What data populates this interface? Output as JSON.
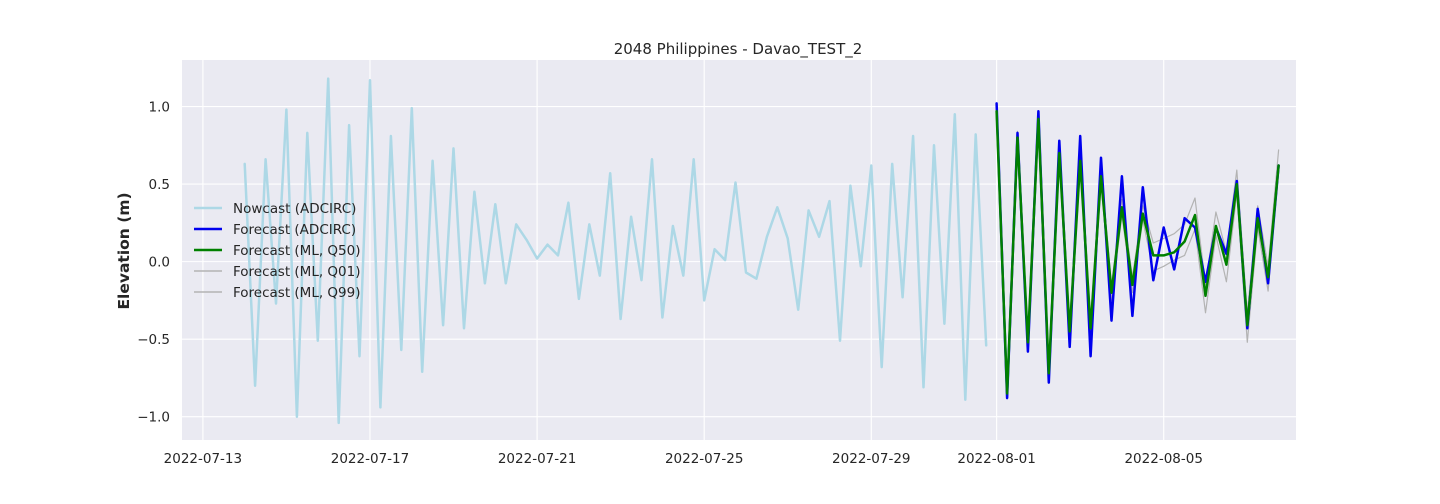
{
  "chart_data": {
    "type": "line",
    "title": "2048 Philippines - Davao_TEST_2",
    "xlabel": "",
    "ylabel": "Elevation (m)",
    "xlim": [
      "2022-07-12T12:00",
      "2022-08-08T04:00"
    ],
    "ylim": [
      -1.15,
      1.3
    ],
    "grid": true,
    "legend_position": "center-left",
    "x_ticks": [
      "2022-07-13",
      "2022-07-17",
      "2022-07-21",
      "2022-07-25",
      "2022-07-29",
      "2022-08-01",
      "2022-08-05"
    ],
    "y_ticks": [
      -1.0,
      -0.5,
      0.0,
      0.5,
      1.0
    ],
    "y_tick_labels": [
      "−1.0",
      "−0.5",
      "0.0",
      "0.5",
      "1.0"
    ],
    "series": [
      {
        "name": "Nowcast (ADCIRC)",
        "color": "#add8e6",
        "x": [
          "2022-07-14T00:00",
          "2022-07-14T06:00",
          "2022-07-14T12:00",
          "2022-07-14T18:00",
          "2022-07-15T00:00",
          "2022-07-15T06:00",
          "2022-07-15T12:00",
          "2022-07-15T18:00",
          "2022-07-16T00:00",
          "2022-07-16T06:00",
          "2022-07-16T12:00",
          "2022-07-16T18:00",
          "2022-07-17T00:00",
          "2022-07-17T06:00",
          "2022-07-17T12:00",
          "2022-07-17T18:00",
          "2022-07-18T00:00",
          "2022-07-18T06:00",
          "2022-07-18T12:00",
          "2022-07-18T18:00",
          "2022-07-19T00:00",
          "2022-07-19T06:00",
          "2022-07-19T12:00",
          "2022-07-19T18:00",
          "2022-07-20T00:00",
          "2022-07-20T06:00",
          "2022-07-20T12:00",
          "2022-07-20T18:00",
          "2022-07-21T00:00",
          "2022-07-21T06:00",
          "2022-07-21T12:00",
          "2022-07-21T18:00",
          "2022-07-22T00:00",
          "2022-07-22T06:00",
          "2022-07-22T12:00",
          "2022-07-22T18:00",
          "2022-07-23T00:00",
          "2022-07-23T06:00",
          "2022-07-23T12:00",
          "2022-07-23T18:00",
          "2022-07-24T00:00",
          "2022-07-24T06:00",
          "2022-07-24T12:00",
          "2022-07-24T18:00",
          "2022-07-25T00:00",
          "2022-07-25T06:00",
          "2022-07-25T12:00",
          "2022-07-25T18:00",
          "2022-07-26T00:00",
          "2022-07-26T06:00",
          "2022-07-26T12:00",
          "2022-07-26T18:00",
          "2022-07-27T00:00",
          "2022-07-27T06:00",
          "2022-07-27T12:00",
          "2022-07-27T18:00",
          "2022-07-28T00:00",
          "2022-07-28T06:00",
          "2022-07-28T12:00",
          "2022-07-28T18:00",
          "2022-07-29T00:00",
          "2022-07-29T06:00",
          "2022-07-29T12:00",
          "2022-07-29T18:00",
          "2022-07-30T00:00",
          "2022-07-30T06:00",
          "2022-07-30T12:00",
          "2022-07-30T18:00",
          "2022-07-31T00:00",
          "2022-07-31T06:00",
          "2022-07-31T12:00",
          "2022-07-31T18:00"
        ],
        "y": [
          0.63,
          -0.8,
          0.66,
          -0.27,
          0.98,
          -1.0,
          0.83,
          -0.51,
          1.18,
          -1.04,
          0.88,
          -0.61,
          1.17,
          -0.94,
          0.81,
          -0.57,
          0.99,
          -0.71,
          0.65,
          -0.41,
          0.73,
          -0.43,
          0.45,
          -0.14,
          0.37,
          -0.14,
          0.24,
          0.14,
          0.02,
          0.11,
          0.04,
          0.38,
          -0.24,
          0.24,
          -0.09,
          0.57,
          -0.37,
          0.29,
          -0.12,
          0.66,
          -0.36,
          0.23,
          -0.09,
          0.66,
          -0.25,
          0.08,
          0.01,
          0.51,
          -0.07,
          -0.11,
          0.16,
          0.35,
          0.15,
          -0.31,
          0.33,
          0.16,
          0.39,
          -0.51,
          0.49,
          -0.03,
          0.62,
          -0.68,
          0.63,
          -0.23,
          0.81,
          -0.81,
          0.75,
          -0.4,
          0.95,
          -0.89,
          0.82,
          -0.54
        ]
      },
      {
        "name": "Forecast (ADCIRC)",
        "color": "#0000ee",
        "x": [
          "2022-08-01T00:00",
          "2022-08-01T06:00",
          "2022-08-01T12:00",
          "2022-08-01T18:00",
          "2022-08-02T00:00",
          "2022-08-02T06:00",
          "2022-08-02T12:00",
          "2022-08-02T18:00",
          "2022-08-03T00:00",
          "2022-08-03T06:00",
          "2022-08-03T12:00",
          "2022-08-03T18:00",
          "2022-08-04T00:00",
          "2022-08-04T06:00",
          "2022-08-04T12:00",
          "2022-08-04T18:00",
          "2022-08-05T00:00",
          "2022-08-05T06:00",
          "2022-08-05T12:00",
          "2022-08-05T18:00",
          "2022-08-06T00:00",
          "2022-08-06T06:00",
          "2022-08-06T12:00",
          "2022-08-06T18:00",
          "2022-08-07T00:00",
          "2022-08-07T06:00",
          "2022-08-07T12:00",
          "2022-08-07T18:00"
        ],
        "y": [
          1.02,
          -0.88,
          0.83,
          -0.58,
          0.97,
          -0.78,
          0.78,
          -0.55,
          0.81,
          -0.61,
          0.67,
          -0.38,
          0.55,
          -0.35,
          0.48,
          -0.12,
          0.22,
          -0.05,
          0.28,
          0.22,
          -0.13,
          0.22,
          0.05,
          0.52,
          -0.43,
          0.34,
          -0.14,
          0.62
        ]
      },
      {
        "name": "Forecast (ML, Q50)",
        "color": "#008000",
        "x": [
          "2022-08-01T00:00",
          "2022-08-01T06:00",
          "2022-08-01T12:00",
          "2022-08-01T18:00",
          "2022-08-02T00:00",
          "2022-08-02T06:00",
          "2022-08-02T12:00",
          "2022-08-02T18:00",
          "2022-08-03T00:00",
          "2022-08-03T06:00",
          "2022-08-03T12:00",
          "2022-08-03T18:00",
          "2022-08-04T00:00",
          "2022-08-04T06:00",
          "2022-08-04T12:00",
          "2022-08-04T18:00",
          "2022-08-05T00:00",
          "2022-08-05T06:00",
          "2022-08-05T12:00",
          "2022-08-05T18:00",
          "2022-08-06T00:00",
          "2022-08-06T06:00",
          "2022-08-06T12:00",
          "2022-08-06T18:00",
          "2022-08-07T00:00",
          "2022-08-07T06:00",
          "2022-08-07T12:00",
          "2022-08-07T18:00"
        ],
        "y": [
          0.97,
          -0.85,
          0.8,
          -0.52,
          0.92,
          -0.72,
          0.7,
          -0.45,
          0.65,
          -0.43,
          0.55,
          -0.2,
          0.35,
          -0.15,
          0.31,
          0.04,
          0.04,
          0.06,
          0.13,
          0.3,
          -0.22,
          0.23,
          -0.02,
          0.5,
          -0.41,
          0.28,
          -0.1,
          0.62
        ]
      },
      {
        "name": "Forecast (ML, Q01)",
        "color": "#b3b3b3",
        "x": [
          "2022-08-01T00:00",
          "2022-08-01T06:00",
          "2022-08-01T12:00",
          "2022-08-01T18:00",
          "2022-08-02T00:00",
          "2022-08-02T06:00",
          "2022-08-02T12:00",
          "2022-08-02T18:00",
          "2022-08-03T00:00",
          "2022-08-03T06:00",
          "2022-08-03T12:00",
          "2022-08-03T18:00",
          "2022-08-04T00:00",
          "2022-08-04T06:00",
          "2022-08-04T12:00",
          "2022-08-04T18:00",
          "2022-08-05T00:00",
          "2022-08-05T06:00",
          "2022-08-05T12:00",
          "2022-08-05T18:00",
          "2022-08-06T00:00",
          "2022-08-06T06:00",
          "2022-08-06T12:00",
          "2022-08-06T18:00",
          "2022-08-07T00:00",
          "2022-08-07T06:00",
          "2022-08-07T12:00",
          "2022-08-07T18:00"
        ],
        "y": [
          0.95,
          -0.87,
          0.78,
          -0.55,
          0.9,
          -0.75,
          0.66,
          -0.49,
          0.6,
          -0.47,
          0.5,
          -0.25,
          0.3,
          -0.2,
          0.27,
          -0.06,
          -0.03,
          0.01,
          0.04,
          0.21,
          -0.33,
          0.17,
          -0.13,
          0.44,
          -0.52,
          0.22,
          -0.19,
          0.6
        ]
      },
      {
        "name": "Forecast (ML, Q99)",
        "color": "#b3b3b3",
        "x": [
          "2022-08-01T00:00",
          "2022-08-01T06:00",
          "2022-08-01T12:00",
          "2022-08-01T18:00",
          "2022-08-02T00:00",
          "2022-08-02T06:00",
          "2022-08-02T12:00",
          "2022-08-02T18:00",
          "2022-08-03T00:00",
          "2022-08-03T06:00",
          "2022-08-03T12:00",
          "2022-08-03T18:00",
          "2022-08-04T00:00",
          "2022-08-04T06:00",
          "2022-08-04T12:00",
          "2022-08-04T18:00",
          "2022-08-05T00:00",
          "2022-08-05T06:00",
          "2022-08-05T12:00",
          "2022-08-05T18:00",
          "2022-08-06T00:00",
          "2022-08-06T06:00",
          "2022-08-06T12:00",
          "2022-08-06T18:00",
          "2022-08-07T00:00",
          "2022-08-07T06:00",
          "2022-08-07T12:00",
          "2022-08-07T18:00"
        ],
        "y": [
          1.0,
          -0.83,
          0.84,
          -0.48,
          0.96,
          -0.68,
          0.74,
          -0.4,
          0.7,
          -0.38,
          0.6,
          -0.15,
          0.4,
          -0.1,
          0.36,
          0.12,
          0.15,
          0.18,
          0.24,
          0.41,
          -0.15,
          0.32,
          0.06,
          0.59,
          -0.33,
          0.36,
          -0.03,
          0.72
        ]
      }
    ]
  }
}
